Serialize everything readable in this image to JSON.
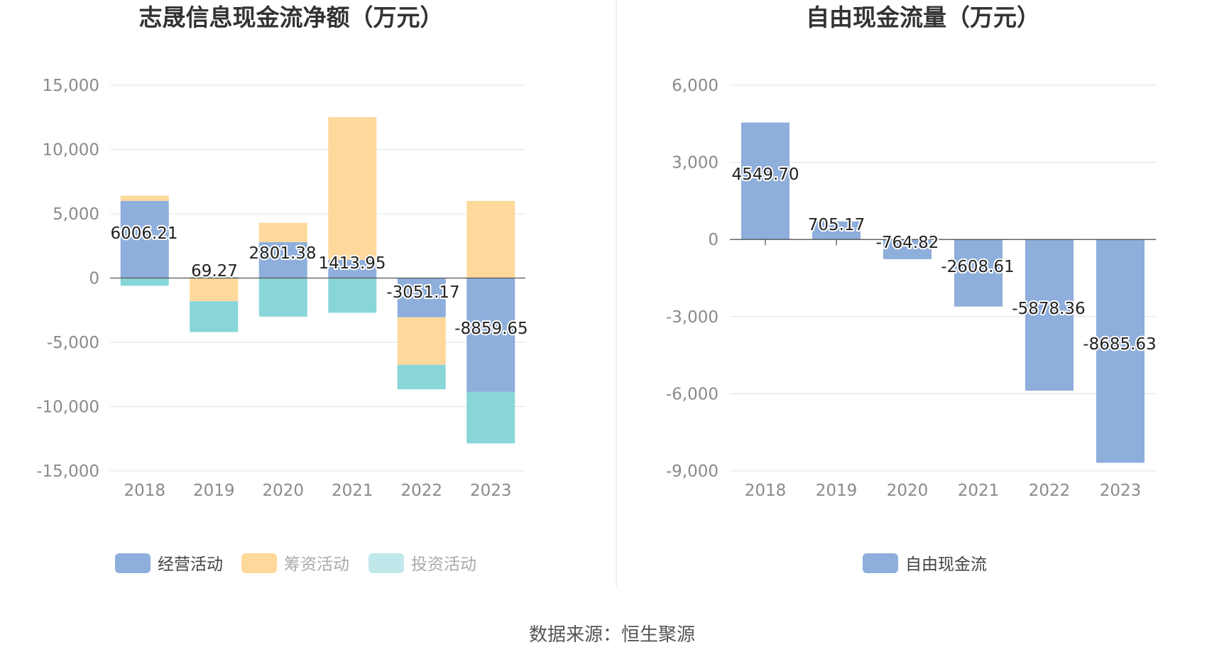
{
  "chart_data": [
    {
      "type": "bar",
      "stacked": true,
      "title": "志晟信息现金流净额（万元）",
      "categories": [
        "2018",
        "2019",
        "2020",
        "2021",
        "2022",
        "2023"
      ],
      "ylim": [
        -15000,
        15000
      ],
      "yticks": [
        15000,
        10000,
        5000,
        0,
        -5000,
        -10000,
        -15000
      ],
      "ytick_labels": [
        "15,000",
        "10,000",
        "5,000",
        "0",
        "-5,000",
        "-10,000",
        "-15,000"
      ],
      "series": [
        {
          "name": "经营活动",
          "color": "#8eaedb",
          "values": [
            6006.21,
            69.27,
            2801.38,
            1413.95,
            -3051.17,
            -8859.65
          ]
        },
        {
          "name": "筹资活动",
          "color": "#fed99b",
          "values": [
            400,
            -1800,
            1500,
            11100,
            -3700,
            6000
          ]
        },
        {
          "name": "投资活动",
          "color": "#88d6d8",
          "values": [
            -600,
            -2400,
            -3000,
            -2700,
            -1900,
            -4000
          ]
        }
      ],
      "data_labels": [
        "6006.21",
        "69.27",
        "2801.38",
        "1413.95",
        "-3051.17",
        "-8859.65"
      ],
      "legend_position": "bottom",
      "grid": true
    },
    {
      "type": "bar",
      "title": "自由现金流量（万元）",
      "categories": [
        "2018",
        "2019",
        "2020",
        "2021",
        "2022",
        "2023"
      ],
      "ylim": [
        -9000,
        6000
      ],
      "yticks": [
        6000,
        3000,
        0,
        -3000,
        -6000,
        -9000
      ],
      "ytick_labels": [
        "6,000",
        "3,000",
        "0",
        "-3,000",
        "-6,000",
        "-9,000"
      ],
      "series": [
        {
          "name": "自由现金流",
          "color": "#8eaedb",
          "values": [
            4549.7,
            705.17,
            -764.82,
            -2608.61,
            -5878.36,
            -8685.63
          ]
        }
      ],
      "data_labels": [
        "4549.70",
        "705.17",
        "-764.82",
        "-2608.61",
        "-5878.36",
        "-8685.63"
      ],
      "legend_position": "bottom",
      "grid": true
    }
  ],
  "source_text": "数据来源：恒生聚源"
}
